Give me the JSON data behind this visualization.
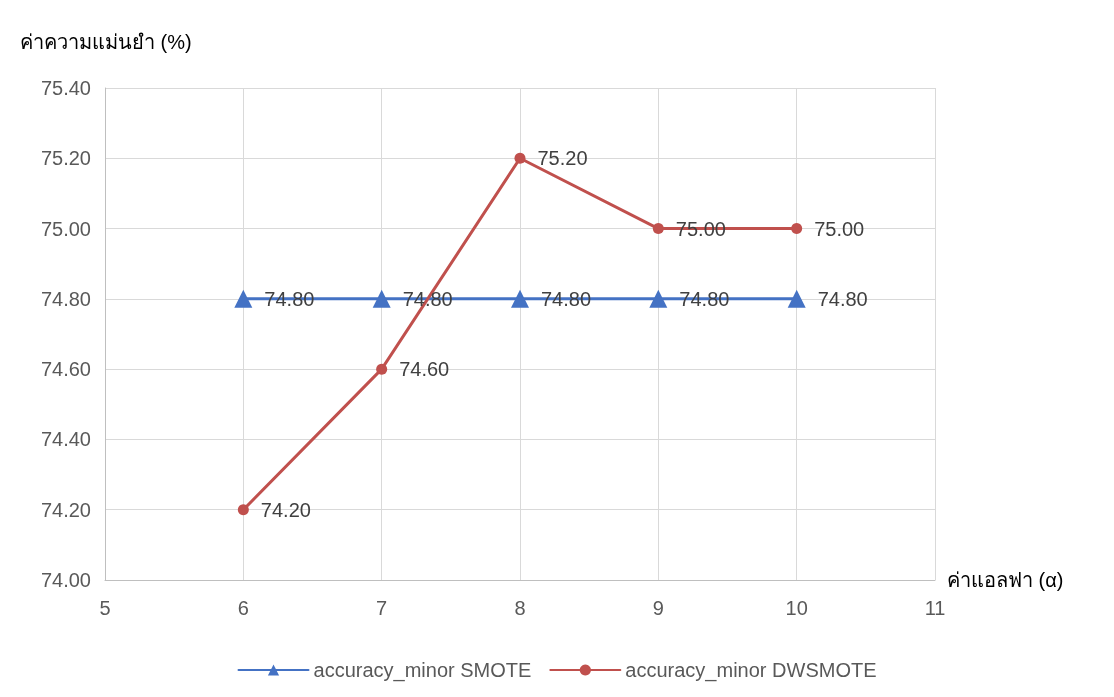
{
  "chart_data": {
    "type": "line",
    "ylabel": "ค่าความแม่นยำ (%)",
    "xlabel": "ค่าแอลฟา (α)",
    "x": [
      6,
      7,
      8,
      9,
      10
    ],
    "series": [
      {
        "name": "accuracy_minor SMOTE",
        "color": "#4472c4",
        "marker": "triangle",
        "values": [
          74.8,
          74.8,
          74.8,
          74.8,
          74.8
        ],
        "value_labels": [
          "74.80",
          "74.80",
          "74.80",
          "74.80",
          "74.80"
        ]
      },
      {
        "name": "accuracy_minor DWSMOTE",
        "color": "#c0504d",
        "marker": "circle",
        "values": [
          74.2,
          74.6,
          75.2,
          75.0,
          75.0
        ],
        "value_labels": [
          "74.20",
          "74.60",
          "75.20",
          "75.00",
          "75.00"
        ]
      }
    ],
    "xlim": [
      5,
      11
    ],
    "xticks": [
      5,
      6,
      7,
      8,
      9,
      10,
      11
    ],
    "ylim": [
      74,
      75.4
    ],
    "yticks": [
      {
        "value": 74,
        "label": "74.00"
      },
      {
        "value": 74.2,
        "label": "74.20"
      },
      {
        "value": 74.4,
        "label": "74.40"
      },
      {
        "value": 74.6,
        "label": "74.60"
      },
      {
        "value": 74.8,
        "label": "74.80"
      },
      {
        "value": 75,
        "label": "75.00"
      },
      {
        "value": 75.2,
        "label": "75.20"
      },
      {
        "value": 75.4,
        "label": "75.40"
      }
    ],
    "grid": true,
    "legend": "bottom",
    "line_style": "solid"
  }
}
